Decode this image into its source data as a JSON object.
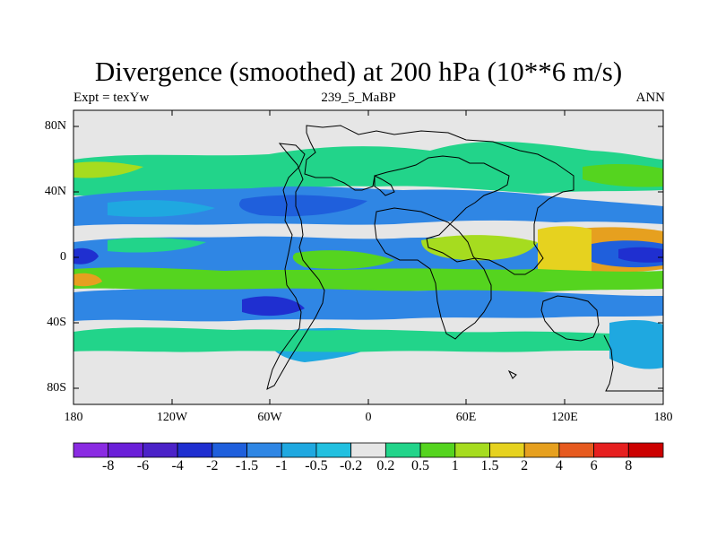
{
  "figure": {
    "title": "Divergence (smoothed) at 200 hPa (10**6 m/s)",
    "left_label": "Expt = texYw",
    "center_label": "239_5_MaBP",
    "right_label": "ANN"
  },
  "axes": {
    "y_ticks": [
      "80N",
      "40N",
      "0",
      "40S",
      "80S"
    ],
    "x_ticks": [
      "180",
      "120W",
      "60W",
      "0",
      "60E",
      "120E",
      "180"
    ]
  },
  "colorbar": {
    "labels": [
      "-8",
      "-6",
      "-4",
      "-2",
      "-1.5",
      "-1",
      "-0.5",
      "-0.2",
      "0.2",
      "0.5",
      "1",
      "1.5",
      "2",
      "4",
      "6",
      "8"
    ],
    "colors": [
      "#8a2be2",
      "#6a1fd8",
      "#4b22c8",
      "#1f2fd0",
      "#1f5fdc",
      "#2f86e4",
      "#1fa8e0",
      "#22c0e0",
      "#e6e6e6",
      "#22d48a",
      "#55d41f",
      "#a6dc1f",
      "#e6d21f",
      "#e6a01f",
      "#e65a1f",
      "#e61f1f",
      "#cc0000"
    ]
  }
}
